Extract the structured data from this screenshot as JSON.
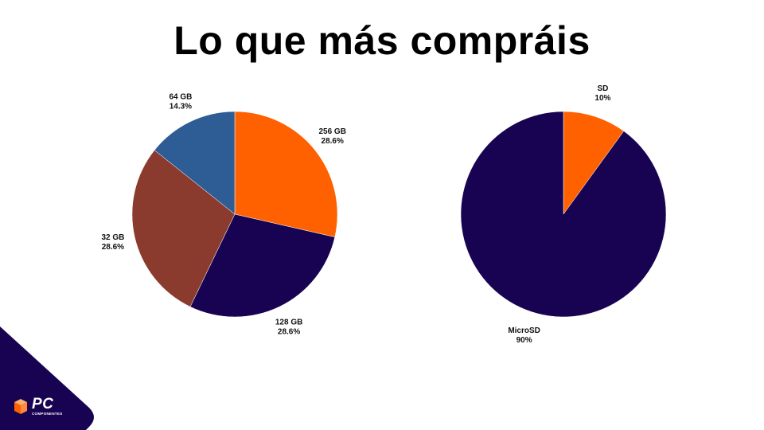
{
  "title": "Lo que más compráis",
  "logo": {
    "mark": "PC",
    "sub": "COMPONENTES"
  },
  "colors": {
    "orange": "#ff6000",
    "navy": "#180352",
    "brown": "#8b3b2e",
    "blue": "#2e5d96"
  },
  "chart_data": [
    {
      "type": "pie",
      "slices": [
        {
          "label": "256 GB",
          "pct_label": "28.6%",
          "value": 28.6,
          "color": "#ff6000"
        },
        {
          "label": "128 GB",
          "pct_label": "28.6%",
          "value": 28.6,
          "color": "#180352"
        },
        {
          "label": "32 GB",
          "pct_label": "28.6%",
          "value": 28.6,
          "color": "#8b3b2e"
        },
        {
          "label": "64 GB",
          "pct_label": "14.3%",
          "value": 14.3,
          "color": "#2e5d96"
        }
      ]
    },
    {
      "type": "pie",
      "slices": [
        {
          "label": "SD",
          "pct_label": "10%",
          "value": 10,
          "color": "#ff6000"
        },
        {
          "label": "MicroSD",
          "pct_label": "90%",
          "value": 90,
          "color": "#180352"
        }
      ]
    }
  ]
}
